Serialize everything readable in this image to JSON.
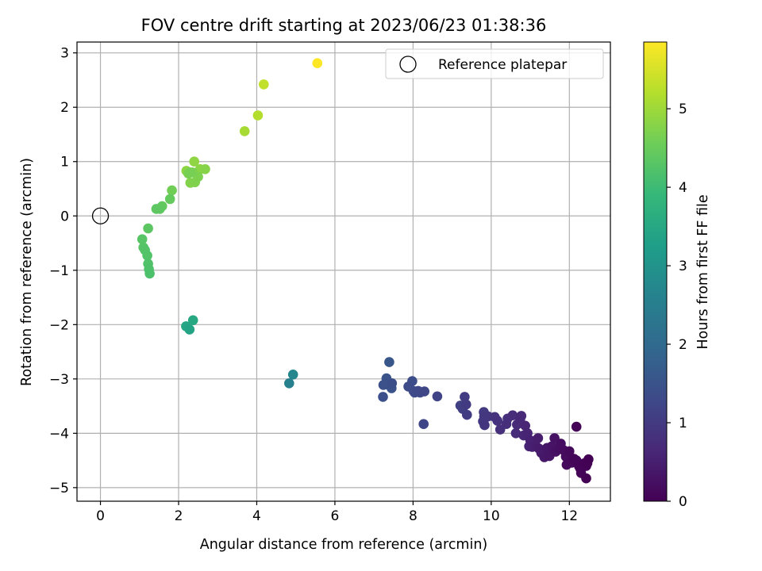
{
  "chart_data": {
    "type": "scatter",
    "title": "FOV centre drift starting at 2023/06/23 01:38:36",
    "xlabel": "Angular distance from reference (arcmin)",
    "ylabel": "Rotation from reference (arcmin)",
    "xlim": [
      -0.6,
      13.05
    ],
    "ylim": [
      -5.25,
      3.2
    ],
    "xticks": [
      0,
      2,
      4,
      6,
      8,
      10,
      12
    ],
    "yticks": [
      -5,
      -4,
      -3,
      -2,
      -1,
      0,
      1,
      2,
      3
    ],
    "grid": true,
    "legend": {
      "position": "top-right",
      "entries": [
        "Reference platepar"
      ]
    },
    "reference_point": {
      "label": "Reference platepar",
      "x": 0,
      "y": 0,
      "marker": "open-circle"
    },
    "colorbar": {
      "label": "Hours from first FF file",
      "colormap": "viridis",
      "range": [
        0,
        5.85
      ],
      "ticks": [
        0,
        1,
        2,
        3,
        4,
        5
      ]
    },
    "series": [
      {
        "x": [
          5.55,
          4.18,
          4.03,
          3.69,
          2.4,
          2.2,
          2.55,
          2.68,
          2.3,
          2.42,
          2.5,
          2.36,
          2.25,
          2.3,
          1.83,
          1.78,
          1.58,
          1.52,
          1.43,
          1.22,
          1.07,
          1.1,
          1.14,
          1.2,
          1.22,
          1.24,
          1.26,
          2.37,
          2.19,
          2.28,
          4.93,
          4.83,
          7.39,
          7.32,
          7.3,
          7.45,
          7.24,
          7.23,
          7.46,
          7.98,
          7.88,
          8.01,
          8.04,
          8.13,
          8.18,
          8.29,
          8.27,
          8.62,
          9.21,
          9.27,
          9.38,
          9.32,
          9.36,
          9.81,
          9.82,
          9.79,
          9.88,
          9.92,
          9.83,
          10.09,
          10.16,
          10.23,
          10.42,
          10.39,
          10.55,
          10.63,
          10.66,
          10.77,
          10.74,
          10.83,
          10.87,
          10.93,
          10.97,
          11.0,
          11.05,
          11.15,
          11.2,
          11.22,
          11.28,
          11.36,
          11.43,
          11.49,
          11.55,
          11.62,
          11.65,
          11.74,
          11.78,
          11.85,
          11.91,
          11.93,
          12.0,
          12.06,
          12.12,
          12.18,
          12.25,
          12.28,
          12.3,
          12.39,
          12.43,
          12.46,
          12.49,
          12.43,
          12.18
        ],
        "y": [
          2.81,
          2.42,
          1.85,
          1.56,
          1.0,
          0.83,
          0.86,
          0.86,
          0.61,
          0.62,
          0.72,
          0.8,
          0.78,
          0.8,
          0.47,
          0.31,
          0.18,
          0.13,
          0.13,
          -0.23,
          -0.43,
          -0.58,
          -0.63,
          -0.73,
          -0.88,
          -0.98,
          -1.06,
          -1.92,
          -2.03,
          -2.09,
          -2.92,
          -3.08,
          -2.69,
          -2.99,
          -3.1,
          -3.17,
          -3.11,
          -3.33,
          -3.08,
          -3.04,
          -3.14,
          -3.22,
          -3.25,
          -3.22,
          -3.25,
          -3.23,
          -3.83,
          -3.32,
          -3.49,
          -3.55,
          -3.66,
          -3.33,
          -3.47,
          -3.61,
          -3.69,
          -3.78,
          -3.7,
          -3.69,
          -3.85,
          -3.7,
          -3.77,
          -3.93,
          -3.73,
          -3.83,
          -3.67,
          -4.0,
          -3.84,
          -3.68,
          -3.74,
          -4.04,
          -3.86,
          -4.0,
          -4.24,
          -4.13,
          -4.25,
          -4.24,
          -4.09,
          -4.28,
          -4.36,
          -4.44,
          -4.27,
          -4.42,
          -4.24,
          -4.09,
          -4.34,
          -4.27,
          -4.19,
          -4.31,
          -4.43,
          -4.58,
          -4.33,
          -4.54,
          -4.47,
          -4.5,
          -4.61,
          -4.65,
          -4.73,
          -4.55,
          -4.6,
          -4.55,
          -4.48,
          -4.83,
          -3.88
        ],
        "hours": [
          5.85,
          5.32,
          5.18,
          5.08,
          4.87,
          4.85,
          4.82,
          4.78,
          4.75,
          4.72,
          4.7,
          4.68,
          4.66,
          4.64,
          4.58,
          4.45,
          4.42,
          4.4,
          4.38,
          4.35,
          4.3,
          4.28,
          4.26,
          4.24,
          4.22,
          4.2,
          4.18,
          3.52,
          3.45,
          3.4,
          2.72,
          2.55,
          1.56,
          1.52,
          1.48,
          1.45,
          1.42,
          1.4,
          1.38,
          1.36,
          1.34,
          1.32,
          1.3,
          1.28,
          1.26,
          1.24,
          1.22,
          1.16,
          1.1,
          1.08,
          1.06,
          1.04,
          1.02,
          1.0,
          0.98,
          0.96,
          0.94,
          0.92,
          0.9,
          0.86,
          0.83,
          0.8,
          0.78,
          0.76,
          0.74,
          0.72,
          0.7,
          0.68,
          0.66,
          0.63,
          0.6,
          0.58,
          0.56,
          0.54,
          0.52,
          0.49,
          0.46,
          0.44,
          0.41,
          0.38,
          0.36,
          0.33,
          0.3,
          0.28,
          0.26,
          0.24,
          0.21,
          0.19,
          0.17,
          0.15,
          0.13,
          0.11,
          0.09,
          0.08,
          0.07,
          0.06,
          0.05,
          0.04,
          0.03,
          0.02,
          0.01,
          0.02,
          0.03
        ]
      }
    ]
  }
}
